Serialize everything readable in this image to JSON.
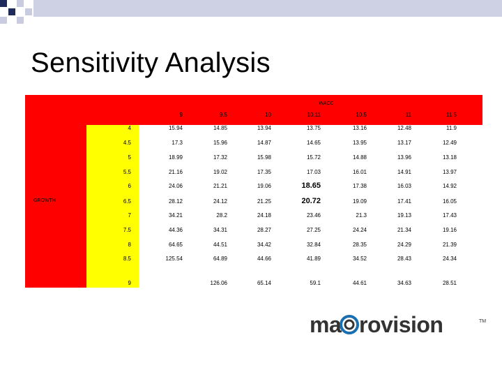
{
  "slide": {
    "title": "Sensitivity Analysis"
  },
  "table": {
    "col_header": "WACC",
    "row_header": "GROWTH",
    "columns": [
      "9",
      "9.5",
      "10",
      "10.11",
      "10.5",
      "11",
      "11.5"
    ],
    "rows": [
      {
        "growth": "4",
        "values": [
          "15.94",
          "14.85",
          "13.94",
          "13.75",
          "13.16",
          "12.48",
          "11.9"
        ]
      },
      {
        "growth": "4.5",
        "values": [
          "17.3",
          "15.96",
          "14.87",
          "14.65",
          "13.95",
          "13.17",
          "12.49"
        ]
      },
      {
        "growth": "5",
        "values": [
          "18.99",
          "17.32",
          "15.98",
          "15.72",
          "14.88",
          "13.96",
          "13.18"
        ]
      },
      {
        "growth": "5.5",
        "values": [
          "21.16",
          "19.02",
          "17.35",
          "17.03",
          "16.01",
          "14.91",
          "13.97"
        ]
      },
      {
        "growth": "6",
        "values": [
          "24.06",
          "21.21",
          "19.06",
          "18.65",
          "17.38",
          "16.03",
          "14.92"
        ]
      },
      {
        "growth": "6.5",
        "values": [
          "28.12",
          "24.12",
          "21.25",
          "20.72",
          "19.09",
          "17.41",
          "16.05"
        ]
      },
      {
        "growth": "7",
        "values": [
          "34.21",
          "28.2",
          "24.18",
          "23.46",
          "21.3",
          "19.13",
          "17.43"
        ]
      },
      {
        "growth": "7.5",
        "values": [
          "44.36",
          "34.31",
          "28.27",
          "27.25",
          "24.24",
          "21.34",
          "19.16"
        ]
      },
      {
        "growth": "8",
        "values": [
          "64.65",
          "44.51",
          "34.42",
          "32.84",
          "28.35",
          "24.29",
          "21.39"
        ]
      },
      {
        "growth": "8.5",
        "values": [
          "125.54",
          "64.89",
          "44.66",
          "41.89",
          "34.52",
          "28.43",
          "24.34"
        ]
      },
      {
        "growth": "9",
        "values": [
          "",
          "126.06",
          "65.14",
          "59.1",
          "44.61",
          "34.63",
          "28.51"
        ]
      }
    ]
  },
  "logo": {
    "text": "macrovision",
    "trademark": "TM"
  },
  "colors": {
    "header": "#ff0000",
    "growth_column": "#ffff00",
    "deco_dark": "#1f2a5c",
    "deco_light": "#c9cce0",
    "logo_text": "#333333",
    "logo_ring": "#1a6fb0"
  }
}
